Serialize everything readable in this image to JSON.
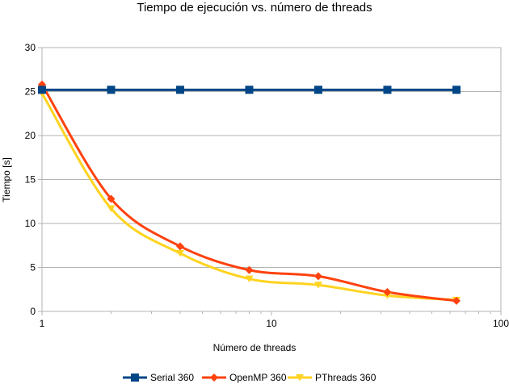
{
  "chart_data": {
    "type": "line",
    "title": "Tiempo de ejecución vs. número de threads",
    "xlabel": "Número de threads",
    "ylabel": "Tiempo [s]",
    "x_scale": "log",
    "xlim": [
      1,
      100
    ],
    "ylim": [
      0,
      30
    ],
    "x_ticks": [
      "1",
      "10",
      "100"
    ],
    "y_ticks": [
      "0",
      "5",
      "10",
      "15",
      "20",
      "25",
      "30"
    ],
    "grid": "horizontal",
    "legend_position": "bottom",
    "x": [
      1,
      2,
      4,
      8,
      16,
      32,
      64
    ],
    "series": [
      {
        "name": "Serial 360",
        "color": "#004586",
        "marker": "square",
        "smooth": false,
        "values": [
          25.2,
          25.2,
          25.2,
          25.2,
          25.2,
          25.2,
          25.2
        ]
      },
      {
        "name": "OpenMP 360",
        "color": "#ff420e",
        "marker": "diamond",
        "smooth": true,
        "values": [
          25.8,
          12.8,
          7.4,
          4.7,
          4.0,
          2.2,
          1.2
        ]
      },
      {
        "name": "PThreads 360",
        "color": "#ffd320",
        "marker": "triangle-down",
        "smooth": true,
        "values": [
          24.8,
          11.7,
          6.6,
          3.7,
          3.0,
          1.8,
          1.3
        ]
      }
    ]
  }
}
